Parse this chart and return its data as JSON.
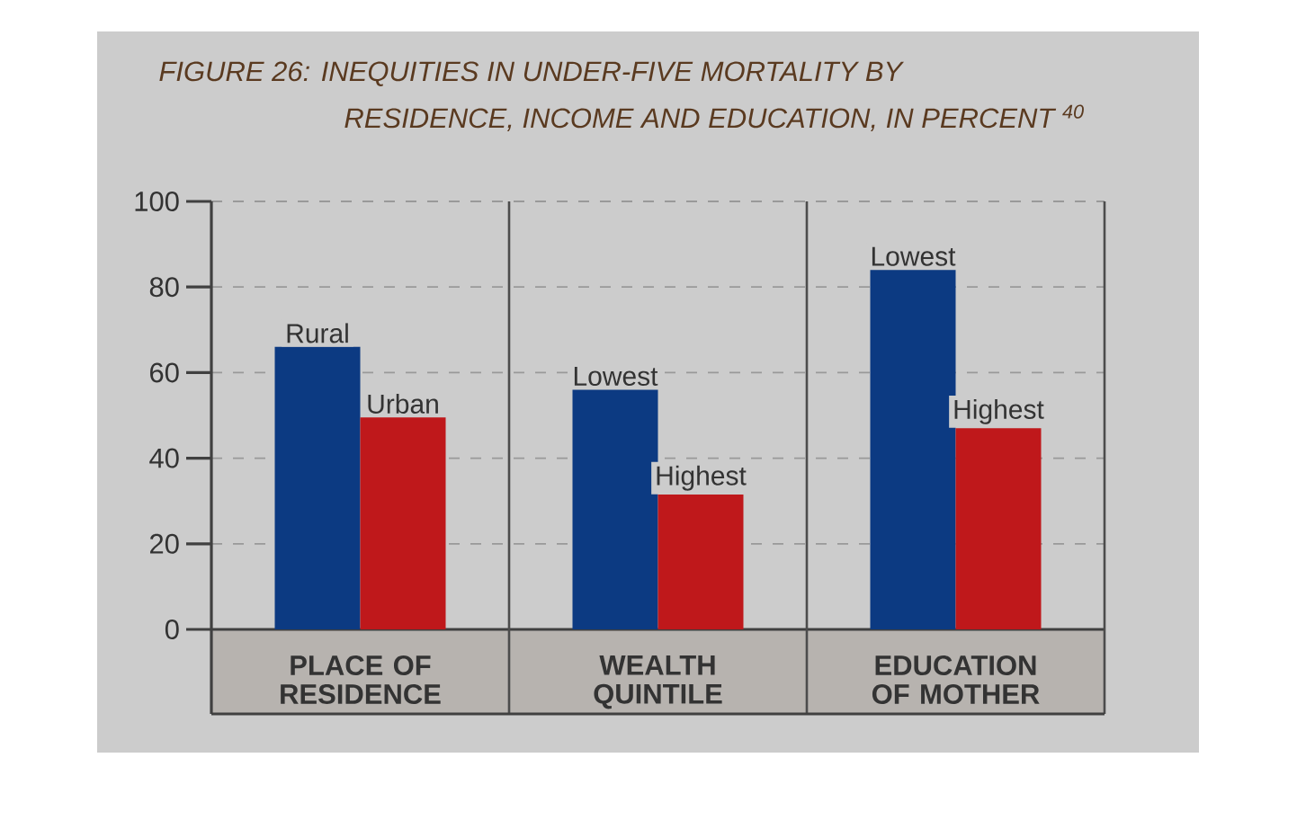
{
  "chart_data": {
    "type": "bar",
    "title": "FIGURE 26: INEQUITIES IN UNDER-FIVE MORTALITY BY RESIDENCE, INCOME AND EDUCATION, IN PERCENT $^{40}$",
    "categories": [
      "PLACE OF RESIDENCE",
      "WEALTH QUINTILE",
      "EDUCATION OF MOTHER"
    ],
    "series": [
      {
        "color": "#0c3a82",
        "values": [
          66,
          56,
          84
        ]
      },
      {
        "color": "#bf181b",
        "values": [
          49.5,
          31.5,
          47
        ]
      }
    ],
    "annotations": [
      {
        "text": "Rural",
        "x": "PLACE OF RESIDENCE",
        "y": 66
      },
      {
        "text": "Urban",
        "x": "PLACE OF RESIDENCE",
        "y": 49.5
      },
      {
        "text": "Lowest",
        "x": "WEALTH QUINTILE",
        "y": 56
      },
      {
        "text": "Highest",
        "x": "WEALTH QUINTILE",
        "y": 31.5
      },
      {
        "text": "Lowest",
        "x": "EDUCATION OF MOTHER",
        "y": 84
      },
      {
        "text": "Highest",
        "x": "EDUCATION OF MOTHER",
        "y": 47
      }
    ],
    "ylim": [
      0,
      100
    ],
    "yticks": [
      0,
      20,
      40,
      60,
      80,
      100
    ],
    "grid": "y"
  }
}
